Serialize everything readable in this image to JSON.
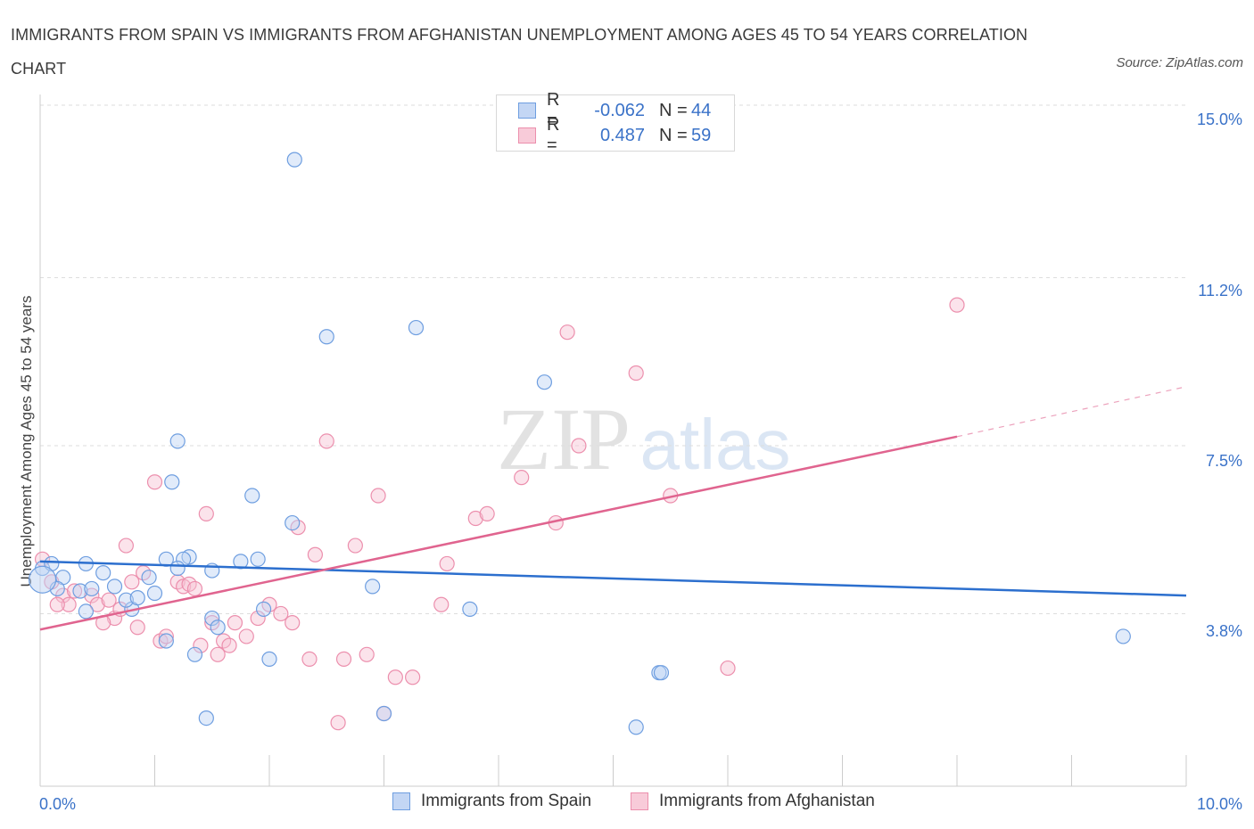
{
  "title": "IMMIGRANTS FROM SPAIN VS IMMIGRANTS FROM AFGHANISTAN UNEMPLOYMENT AMONG AGES 45 TO 54 YEARS CORRELATION CHART",
  "source": "Source: ZipAtlas.com",
  "watermark": {
    "zip": "ZIP",
    "atlas": "atlas"
  },
  "legend": {
    "spain": {
      "r_label": "R =",
      "r_value": "-0.062",
      "n_label": "N =",
      "n_value": "44"
    },
    "afghanistan": {
      "r_label": "R =",
      "r_value": "0.487",
      "n_label": "N =",
      "n_value": "59"
    }
  },
  "chart_data": {
    "type": "scatter",
    "title": "IMMIGRANTS FROM SPAIN VS IMMIGRANTS FROM AFGHANISTAN UNEMPLOYMENT AMONG AGES 45 TO 54 YEARS CORRELATION CHART",
    "xlabel": "",
    "ylabel": "Unemployment Among Ages 45 to 54 years",
    "xlim": [
      0,
      10
    ],
    "ylim": [
      0,
      15
    ],
    "x_tick_labels": [
      "0.0%",
      "10.0%"
    ],
    "y_ticks": [
      3.8,
      7.5,
      11.2,
      15.0
    ],
    "y_tick_labels": [
      "3.8%",
      "7.5%",
      "11.2%",
      "15.0%"
    ],
    "grid": true,
    "legend_position": "top-center",
    "colors": {
      "spain": "#6e9ee0",
      "afghanistan": "#ec8fad",
      "spain_line": "#2c6fce",
      "afghanistan_line": "#e0648f"
    },
    "series": [
      {
        "name": "Immigrants from Spain",
        "points": [
          [
            0.02,
            4.8
          ],
          [
            0.1,
            4.9
          ],
          [
            0.2,
            4.6
          ],
          [
            0.4,
            4.9
          ],
          [
            0.55,
            4.7
          ],
          [
            0.15,
            4.35
          ],
          [
            0.35,
            4.3
          ],
          [
            0.45,
            4.35
          ],
          [
            0.65,
            4.4
          ],
          [
            0.4,
            3.85
          ],
          [
            0.8,
            3.9
          ],
          [
            0.75,
            4.1
          ],
          [
            0.85,
            4.15
          ],
          [
            0.95,
            4.6
          ],
          [
            1.1,
            5.0
          ],
          [
            1.3,
            5.05
          ],
          [
            1.25,
            5.0
          ],
          [
            1.0,
            4.25
          ],
          [
            1.2,
            4.8
          ],
          [
            1.5,
            4.75
          ],
          [
            1.75,
            4.95
          ],
          [
            1.9,
            5.0
          ],
          [
            2.2,
            5.8
          ],
          [
            1.85,
            6.4
          ],
          [
            1.15,
            6.7
          ],
          [
            1.2,
            7.6
          ],
          [
            1.5,
            3.7
          ],
          [
            1.55,
            3.5
          ],
          [
            1.1,
            3.2
          ],
          [
            1.35,
            2.9
          ],
          [
            1.95,
            3.9
          ],
          [
            2.0,
            2.8
          ],
          [
            1.45,
            1.5
          ],
          [
            2.22,
            13.8
          ],
          [
            2.5,
            9.9
          ],
          [
            3.28,
            10.1
          ],
          [
            4.4,
            8.9
          ],
          [
            2.9,
            4.4
          ],
          [
            3.75,
            3.9
          ],
          [
            5.4,
            2.5
          ],
          [
            5.42,
            2.5
          ],
          [
            3.0,
            1.6
          ],
          [
            5.2,
            1.3
          ],
          [
            9.45,
            3.3
          ]
        ]
      },
      {
        "name": "Immigrants from Afghanistan",
        "points": [
          [
            0.02,
            5.0
          ],
          [
            0.1,
            4.5
          ],
          [
            0.2,
            4.2
          ],
          [
            0.25,
            4.0
          ],
          [
            0.3,
            4.3
          ],
          [
            0.45,
            4.2
          ],
          [
            0.5,
            4.0
          ],
          [
            0.65,
            3.7
          ],
          [
            0.55,
            3.6
          ],
          [
            0.7,
            3.9
          ],
          [
            0.8,
            4.5
          ],
          [
            0.85,
            3.5
          ],
          [
            0.9,
            4.7
          ],
          [
            0.75,
            5.3
          ],
          [
            1.0,
            6.7
          ],
          [
            1.05,
            3.2
          ],
          [
            1.1,
            3.3
          ],
          [
            1.2,
            4.5
          ],
          [
            1.25,
            4.4
          ],
          [
            1.3,
            4.45
          ],
          [
            1.35,
            4.35
          ],
          [
            1.4,
            3.1
          ],
          [
            1.45,
            6.0
          ],
          [
            1.5,
            3.6
          ],
          [
            1.55,
            2.9
          ],
          [
            1.6,
            3.2
          ],
          [
            1.65,
            3.1
          ],
          [
            1.7,
            3.6
          ],
          [
            1.8,
            3.3
          ],
          [
            1.9,
            3.7
          ],
          [
            2.0,
            4.0
          ],
          [
            2.1,
            3.8
          ],
          [
            2.2,
            3.6
          ],
          [
            2.25,
            5.7
          ],
          [
            2.35,
            2.8
          ],
          [
            2.4,
            5.1
          ],
          [
            2.5,
            7.6
          ],
          [
            2.6,
            1.4
          ],
          [
            2.65,
            2.8
          ],
          [
            2.75,
            5.3
          ],
          [
            2.85,
            2.9
          ],
          [
            2.95,
            6.4
          ],
          [
            3.0,
            1.6
          ],
          [
            3.1,
            2.4
          ],
          [
            3.25,
            2.4
          ],
          [
            3.5,
            4.0
          ],
          [
            3.55,
            4.9
          ],
          [
            3.8,
            5.9
          ],
          [
            3.9,
            6.0
          ],
          [
            4.2,
            6.8
          ],
          [
            4.5,
            5.8
          ],
          [
            4.6,
            10.0
          ],
          [
            4.7,
            7.5
          ],
          [
            5.2,
            9.1
          ],
          [
            5.5,
            6.4
          ],
          [
            6.0,
            2.6
          ],
          [
            8.0,
            10.6
          ],
          [
            0.15,
            4.0
          ],
          [
            0.6,
            4.1
          ]
        ]
      }
    ],
    "trend_lines": [
      {
        "series": "Immigrants from Spain",
        "from": [
          0,
          4.95
        ],
        "to": [
          10,
          4.2
        ],
        "dashed_from": null
      },
      {
        "series": "Immigrants from Afghanistan",
        "from": [
          0,
          3.45
        ],
        "to": [
          8.0,
          7.7
        ],
        "dashed_to": [
          10,
          8.8
        ]
      }
    ]
  },
  "bottom_legend": {
    "spain": "Immigrants from Spain",
    "afghanistan": "Immigrants from Afghanistan"
  }
}
